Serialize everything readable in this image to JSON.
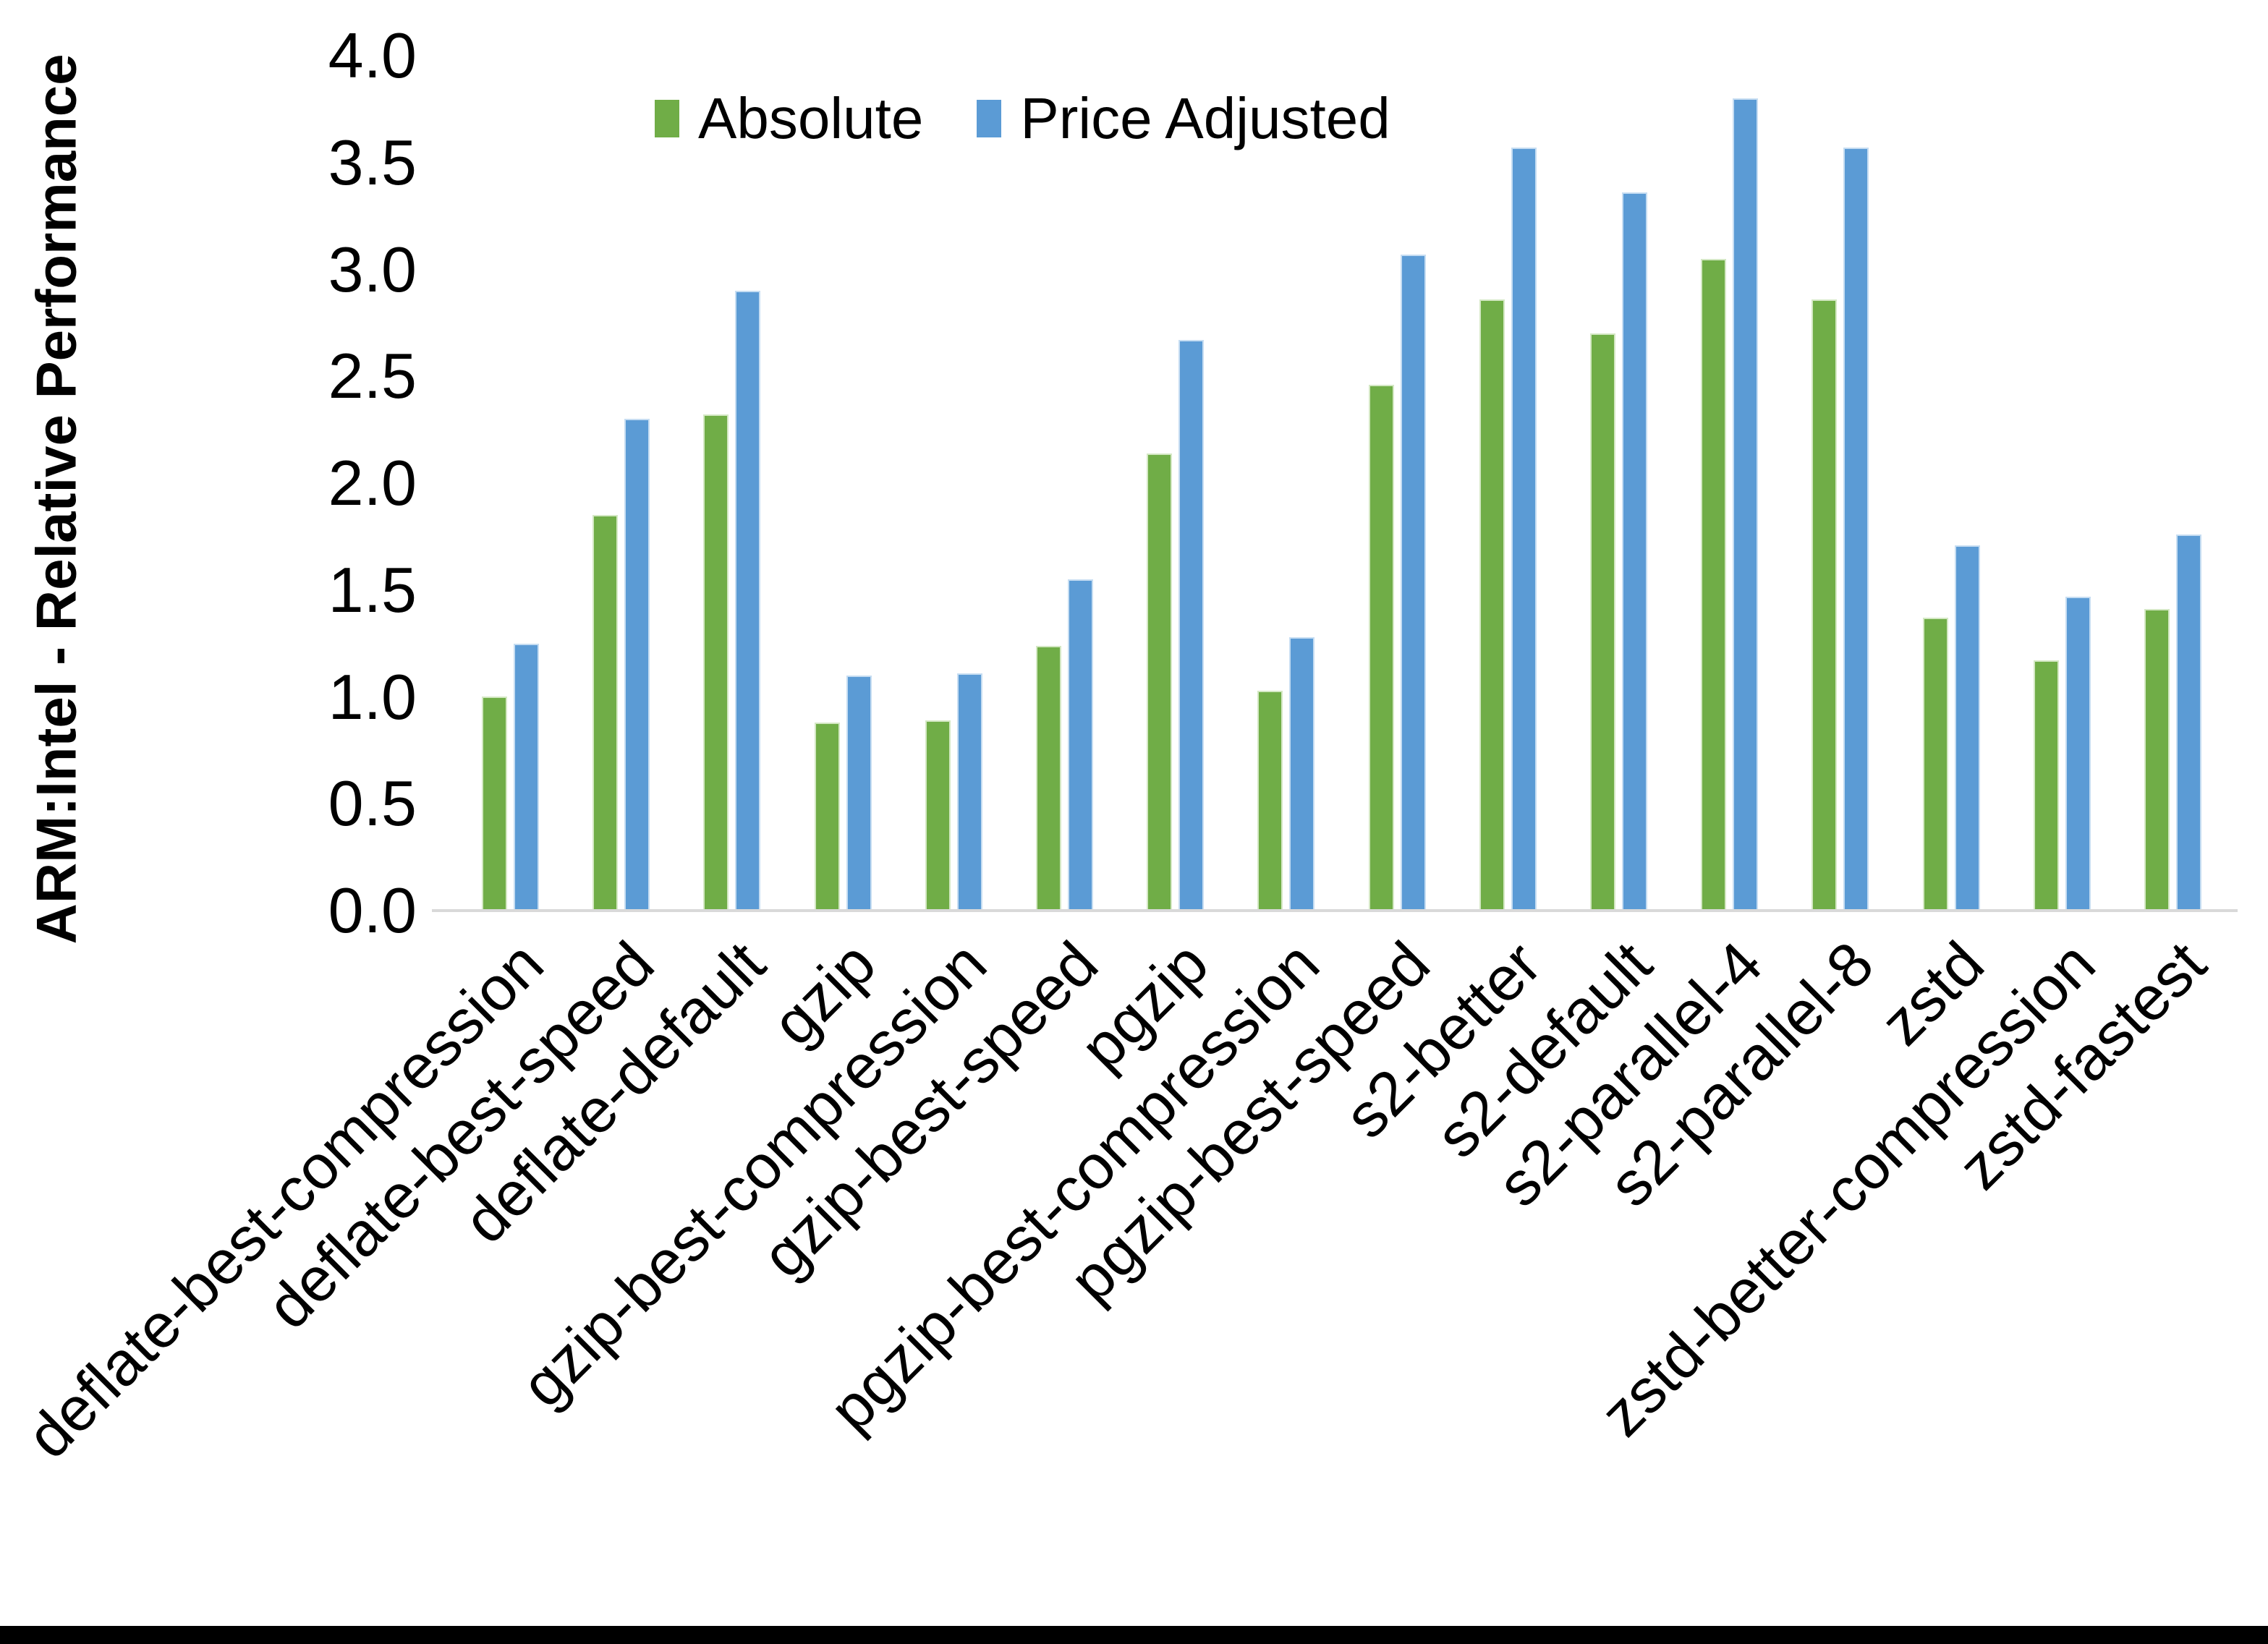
{
  "chart_data": {
    "type": "bar",
    "title": "",
    "ylabel": "ARM:Intel - Relative Performance",
    "xlabel": "",
    "ylim": [
      0.0,
      4.0
    ],
    "ytick_step": 0.5,
    "yticks": [
      "0.0",
      "0.5",
      "1.0",
      "1.5",
      "2.0",
      "2.5",
      "3.0",
      "3.5",
      "4.0"
    ],
    "grid": false,
    "legend_position": "top-center",
    "background_color": "#ffffff",
    "axis_line_color": "#d9d9d9",
    "text_color": "#000000",
    "bottom_bar_color": "#000000",
    "categories": [
      "deflate-best-compression",
      "deflate-best-speed",
      "deflate-default",
      "gzip",
      "gzip-best-compression",
      "gzip-best-speed",
      "pgzip",
      "pgzip-best-compression",
      "pgzip-best-speed",
      "s2-better",
      "s2-default",
      "s2-parallel-4",
      "s2-parallel-8",
      "zstd",
      "zstd-better-compression",
      "zstd-fastest"
    ],
    "series": [
      {
        "name": "Absolute",
        "color": "#70AD47",
        "edge_color": "#d4e8c4",
        "values": [
          1.0,
          1.85,
          2.32,
          0.88,
          0.89,
          1.24,
          2.14,
          1.03,
          2.46,
          2.86,
          2.7,
          3.05,
          2.86,
          1.37,
          1.17,
          1.41
        ]
      },
      {
        "name": "Price Adjusted",
        "color": "#5B9BD5",
        "edge_color": "#c6ddf2",
        "values": [
          1.25,
          2.3,
          2.9,
          1.1,
          1.11,
          1.55,
          2.67,
          1.28,
          3.07,
          3.57,
          3.36,
          3.8,
          3.57,
          1.71,
          1.47,
          1.76
        ]
      }
    ]
  }
}
